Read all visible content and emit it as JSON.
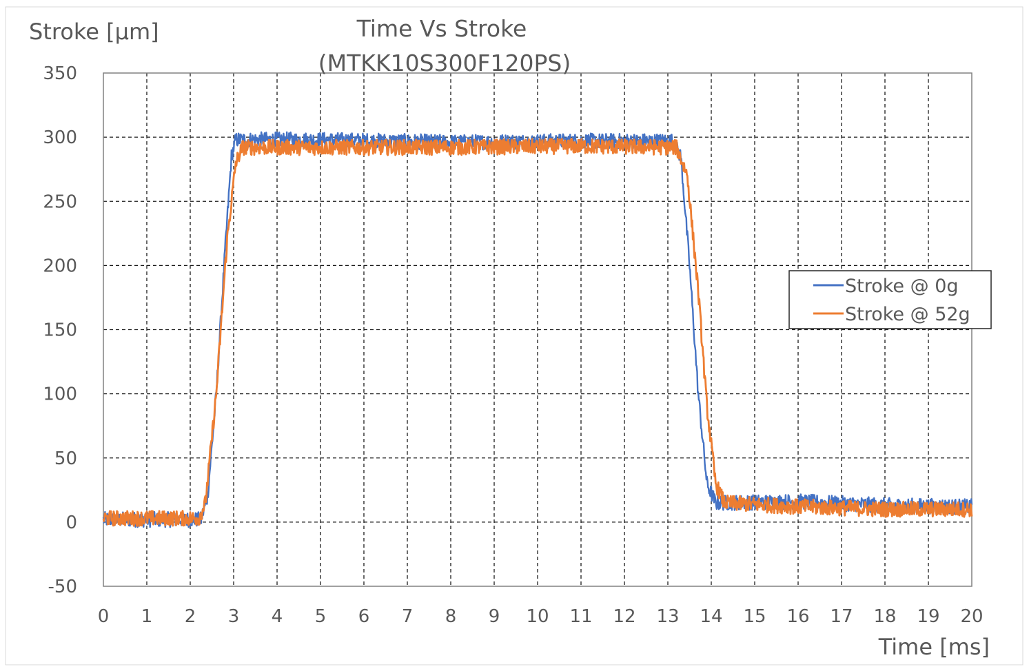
{
  "chart_data": {
    "type": "line",
    "title": "Time Vs Stroke",
    "subtitle": "(MTKK10S300F120PS)",
    "xlabel": "Time [ms]",
    "ylabel": "Stroke [µm]",
    "xlim": [
      0,
      20
    ],
    "ylim": [
      -50,
      350
    ],
    "x_ticks": [
      "0",
      "1",
      "2",
      "3",
      "4",
      "5",
      "6",
      "7",
      "8",
      "9",
      "10",
      "11",
      "12",
      "13",
      "14",
      "15",
      "16",
      "17",
      "18",
      "19",
      "20"
    ],
    "y_ticks": [
      "350",
      "300",
      "250",
      "200",
      "150",
      "100",
      "50",
      "0",
      "-50"
    ],
    "grid": true,
    "grid_style": "dashed",
    "legend_position": "right",
    "series": [
      {
        "name": "Stroke @ 0g",
        "color": "#4472C4",
        "points": [
          [
            0,
            2
          ],
          [
            2.25,
            2
          ],
          [
            2.4,
            20
          ],
          [
            2.6,
            100
          ],
          [
            2.8,
            210
          ],
          [
            2.95,
            285
          ],
          [
            3.05,
            298
          ],
          [
            5,
            298
          ],
          [
            8,
            296
          ],
          [
            11,
            297
          ],
          [
            13.1,
            297
          ],
          [
            13.3,
            285
          ],
          [
            13.5,
            200
          ],
          [
            13.7,
            100
          ],
          [
            13.9,
            30
          ],
          [
            14.1,
            15
          ],
          [
            16,
            16
          ],
          [
            18,
            13
          ],
          [
            20,
            12
          ]
        ],
        "noise_amplitude": 6
      },
      {
        "name": "Stroke @ 52g",
        "color": "#ED7D31",
        "points": [
          [
            0,
            3
          ],
          [
            2.2,
            3
          ],
          [
            2.35,
            15
          ],
          [
            2.6,
            100
          ],
          [
            2.85,
            220
          ],
          [
            3.05,
            280
          ],
          [
            3.2,
            292
          ],
          [
            5,
            292
          ],
          [
            8,
            292
          ],
          [
            11,
            293
          ],
          [
            13.2,
            292
          ],
          [
            13.45,
            270
          ],
          [
            13.7,
            180
          ],
          [
            13.9,
            90
          ],
          [
            14.1,
            30
          ],
          [
            14.3,
            15
          ],
          [
            16,
            12
          ],
          [
            18,
            10
          ],
          [
            20,
            10
          ]
        ],
        "noise_amplitude": 6
      }
    ]
  }
}
